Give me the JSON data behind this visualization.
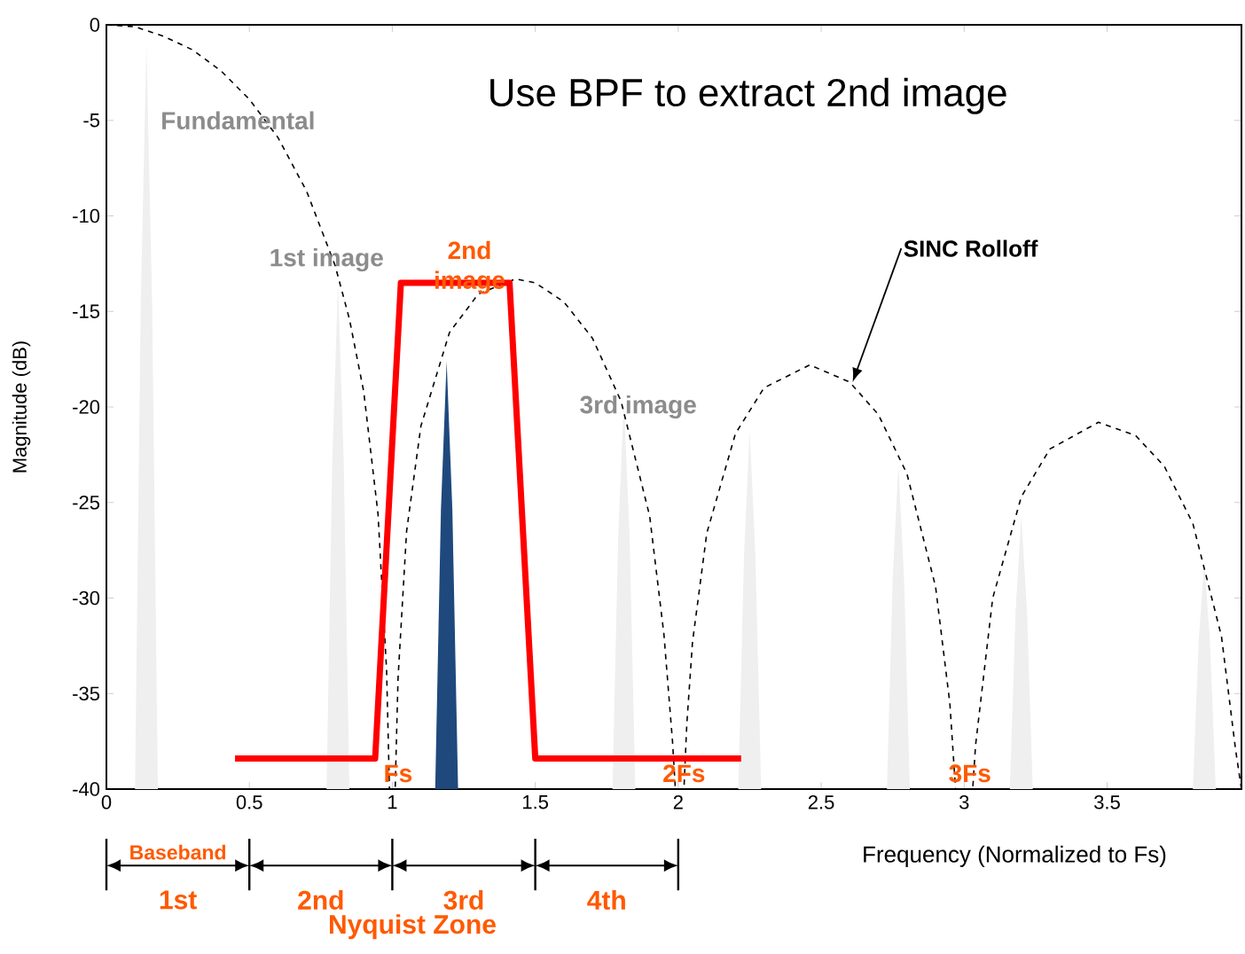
{
  "chart_data": {
    "type": "line",
    "title": "Use BPF to extract 2nd image",
    "xlabel": "Frequency (Normalized to Fs)",
    "ylabel": "Magnitude (dB)",
    "xlim": [
      0,
      3.97
    ],
    "ylim": [
      -40,
      0
    ],
    "xticks": [
      0,
      0.5,
      1,
      1.5,
      2,
      2.5,
      3,
      3.5
    ],
    "yticks": [
      -40,
      -35,
      -30,
      -25,
      -20,
      -15,
      -10,
      -5,
      0
    ],
    "marker": "none",
    "series": [
      {
        "type": "line",
        "color": "#000000",
        "line_style": "dashed",
        "x": [
          0,
          0.1,
          0.2,
          0.3,
          0.4,
          0.5,
          0.6,
          0.7,
          0.8,
          0.85,
          0.9,
          0.95,
          0.98,
          0.99,
          1.01,
          1.02,
          1.05,
          1.1,
          1.2,
          1.3,
          1.43,
          1.5,
          1.6,
          1.7,
          1.8,
          1.9,
          1.95,
          1.98,
          1.99,
          2.02,
          2.03,
          2.05,
          2.1,
          2.2,
          2.3,
          2.46,
          2.6,
          2.7,
          2.8,
          2.9,
          2.95,
          2.97,
          3.03,
          3.04,
          3.1,
          3.2,
          3.3,
          3.47,
          3.6,
          3.7,
          3.8,
          3.9,
          3.95,
          3.97
        ],
        "values": [
          0,
          -0.1,
          -0.6,
          -1.3,
          -2.4,
          -3.9,
          -5.9,
          -8.7,
          -12.6,
          -15.4,
          -19.2,
          -25.6,
          -33.8,
          -40,
          -40,
          -34.2,
          -26.5,
          -21.0,
          -16.1,
          -14.1,
          -13.3,
          -13.5,
          -14.5,
          -16.4,
          -19.7,
          -25.7,
          -31.9,
          -37.5,
          -40,
          -40,
          -36.6,
          -32.3,
          -26.6,
          -21.4,
          -19.0,
          -17.8,
          -18.7,
          -20.4,
          -23.5,
          -29.4,
          -35.5,
          -40,
          -40,
          -37.7,
          -30.0,
          -24.7,
          -22.2,
          -20.8,
          -21.5,
          -23.1,
          -26.1,
          -32.0,
          -38.0,
          -40
        ]
      },
      {
        "color": "#ff0000",
        "x": [
          0.45,
          0.94,
          1.03,
          1.41,
          1.5,
          2.22
        ],
        "values": [
          -38.4,
          -38.4,
          -13.5,
          -13.5,
          -38.4,
          -38.4
        ]
      },
      {
        "type": "area",
        "color": "#efefef",
        "x": [
          0.1,
          0.12,
          0.14,
          0.16,
          0.18
        ],
        "values": [
          -40,
          -14.7,
          -1,
          -14.7,
          -40
        ]
      },
      {
        "type": "area",
        "color": "#efefef",
        "x": [
          0.77,
          0.79,
          0.81,
          0.83,
          0.85
        ],
        "values": [
          -40,
          -22.8,
          -13.5,
          -22.8,
          -40
        ]
      },
      {
        "type": "area",
        "color": "#1f497d",
        "x": [
          1.15,
          1.17,
          1.19,
          1.21,
          1.23
        ],
        "values": [
          -40,
          -25.4,
          -17.6,
          -25.4,
          -40
        ]
      },
      {
        "type": "area",
        "color": "#efefef",
        "x": [
          1.77,
          1.79,
          1.81,
          1.83,
          1.85
        ],
        "values": [
          -40,
          -26.8,
          -19.7,
          -26.8,
          -40
        ]
      },
      {
        "type": "area",
        "color": "#efefef",
        "x": [
          2.21,
          2.23,
          2.25,
          2.27,
          2.29
        ],
        "values": [
          -40,
          -27.8,
          -21.2,
          -27.8,
          -40
        ]
      },
      {
        "type": "area",
        "color": "#efefef",
        "x": [
          2.73,
          2.75,
          2.77,
          2.79,
          2.81
        ],
        "values": [
          -40,
          -29.0,
          -23.0,
          -29.0,
          -40
        ]
      },
      {
        "type": "area",
        "color": "#efefef",
        "x": [
          3.16,
          3.18,
          3.2,
          3.22,
          3.24
        ],
        "values": [
          -40,
          -30.7,
          -25.7,
          -30.7,
          -40
        ]
      },
      {
        "type": "area",
        "color": "#efefef",
        "x": [
          3.8,
          3.82,
          3.84,
          3.86,
          3.88
        ],
        "values": [
          -40,
          -32.3,
          -28.1,
          -32.3,
          -40
        ]
      }
    ],
    "annotations": [
      {
        "text": "Fundamental",
        "x": 0.14,
        "y": -1
      },
      {
        "text": "1st image",
        "x": 0.81,
        "y": -13.5
      },
      {
        "text": "2nd image",
        "x": 1.19,
        "y": -17.6
      },
      {
        "text": "3rd image",
        "x": 1.81,
        "y": -19.7
      },
      {
        "text": "SINC Rolloff",
        "x": 2.61,
        "y": -18.7
      },
      {
        "text": "Fs",
        "x": 1,
        "y": -40
      },
      {
        "text": "2Fs",
        "x": 2,
        "y": -40
      },
      {
        "text": "3Fs",
        "x": 3,
        "y": -40
      },
      "Baseband",
      "1st",
      "2nd",
      "3rd",
      "4th",
      "Nyquist Zone"
    ]
  }
}
